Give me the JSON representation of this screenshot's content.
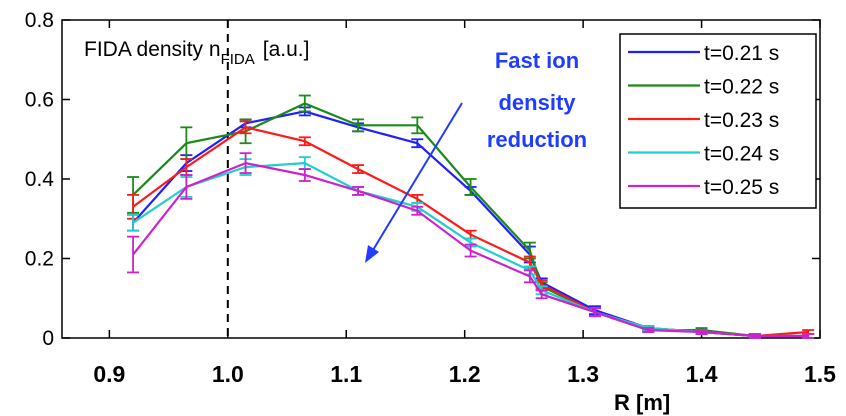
{
  "chart_data": {
    "type": "line",
    "title": "FIDA density n",
    "title_subscript": "FIDA",
    "title_unit": "[a.u.]",
    "xlabel": "R [m]",
    "ylabel": "",
    "xlim": [
      0.86,
      1.5
    ],
    "ylim": [
      0,
      0.8
    ],
    "x_ticks": [
      0.9,
      1.0,
      1.1,
      1.2,
      1.3,
      1.4,
      1.5
    ],
    "x_tick_labels": [
      "0.9",
      "1.0",
      "1.1",
      "1.2",
      "1.3",
      "1.4",
      "1.5"
    ],
    "y_ticks": [
      0,
      0.2,
      0.4,
      0.6,
      0.8
    ],
    "y_tick_labels": [
      "0",
      "0.2",
      "0.4",
      "0.6",
      "0.8"
    ],
    "vline_x": 1.0,
    "annotation": [
      "Fast ion",
      "density",
      "reduction"
    ],
    "legend_position": "top-right",
    "grid": false,
    "x": [
      0.92,
      0.965,
      1.015,
      1.065,
      1.11,
      1.16,
      1.205,
      1.255,
      1.265,
      1.31,
      1.355,
      1.4,
      1.445,
      1.49
    ],
    "series": [
      {
        "name": "t=0.21 s",
        "color": "#1f1fff",
        "values": [
          0.29,
          0.44,
          0.54,
          0.57,
          0.53,
          0.49,
          0.37,
          0.21,
          0.14,
          0.07,
          0.025,
          0.015,
          0.005,
          0.005
        ],
        "errors": [
          0.02,
          0.02,
          0.01,
          0.01,
          0.01,
          0.01,
          0.01,
          0.02,
          0.01,
          0.01,
          0.005,
          0.005,
          0.005,
          0.005
        ]
      },
      {
        "name": "t=0.22 s",
        "color": "#1a8a1a",
        "values": [
          0.36,
          0.49,
          0.52,
          0.59,
          0.535,
          0.535,
          0.38,
          0.22,
          0.13,
          0.065,
          0.02,
          0.02,
          0.005,
          0.005
        ],
        "errors": [
          0.045,
          0.04,
          0.03,
          0.02,
          0.015,
          0.02,
          0.02,
          0.02,
          0.01,
          0.01,
          0.005,
          0.005,
          0.005,
          0.005
        ]
      },
      {
        "name": "t=0.23 s",
        "color": "#ff1a1a",
        "values": [
          0.33,
          0.43,
          0.53,
          0.495,
          0.425,
          0.35,
          0.26,
          0.19,
          0.135,
          0.065,
          0.025,
          0.015,
          0.005,
          0.015
        ],
        "errors": [
          0.03,
          0.02,
          0.015,
          0.01,
          0.01,
          0.01,
          0.01,
          0.015,
          0.01,
          0.01,
          0.005,
          0.005,
          0.005,
          0.005
        ]
      },
      {
        "name": "t=0.24 s",
        "color": "#1fcfcf",
        "values": [
          0.29,
          0.38,
          0.43,
          0.44,
          0.37,
          0.33,
          0.24,
          0.17,
          0.12,
          0.065,
          0.025,
          0.015,
          0.005,
          0.005
        ],
        "errors": [
          0.02,
          0.025,
          0.02,
          0.015,
          0.01,
          0.01,
          0.01,
          0.01,
          0.01,
          0.01,
          0.005,
          0.005,
          0.005,
          0.005
        ]
      },
      {
        "name": "t=0.25 s",
        "color": "#cc22cc",
        "values": [
          0.21,
          0.38,
          0.44,
          0.41,
          0.37,
          0.32,
          0.22,
          0.155,
          0.11,
          0.065,
          0.02,
          0.015,
          0.005,
          0.005
        ],
        "errors": [
          0.045,
          0.03,
          0.025,
          0.015,
          0.01,
          0.01,
          0.015,
          0.015,
          0.01,
          0.01,
          0.005,
          0.005,
          0.005,
          0.005
        ]
      }
    ]
  }
}
